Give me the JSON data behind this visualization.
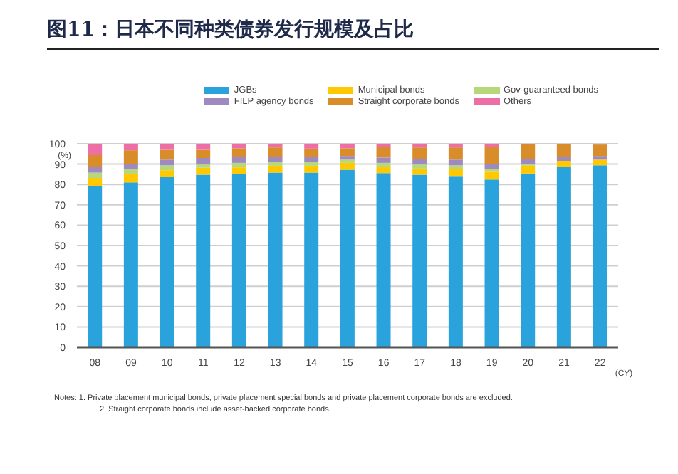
{
  "chart_data": {
    "type": "bar",
    "title": "图11：日本不同种类债券发行规模及占比",
    "ylabel": "(%)",
    "xlabel": "(CY)",
    "categories": [
      "08",
      "09",
      "10",
      "11",
      "12",
      "13",
      "14",
      "15",
      "16",
      "17",
      "18",
      "19",
      "20",
      "21",
      "22"
    ],
    "stacked": true,
    "ylim": [
      0,
      100
    ],
    "yticks": [
      0,
      10,
      20,
      30,
      40,
      50,
      60,
      70,
      80,
      90,
      100
    ],
    "grid": "y",
    "legend": "top right",
    "series": [
      {
        "name": "JGBs",
        "color": "#2aa3dc",
        "values": [
          79.2,
          81,
          83.6,
          84.8,
          85.2,
          85.8,
          85.8,
          87.2,
          85.6,
          84.8,
          84.2,
          82.4,
          85.4,
          88.8,
          89.4
        ]
      },
      {
        "name": "Municipal bonds",
        "color": "#ffc800",
        "values": [
          4,
          4,
          3.4,
          3.4,
          3.2,
          3.4,
          3.4,
          3.4,
          3,
          3,
          3.4,
          4.2,
          3.8,
          2.8,
          2.8
        ]
      },
      {
        "name": "Gov-guaranteed bonds",
        "color": "#b6d77a",
        "values": [
          2.6,
          2.6,
          2.4,
          1.6,
          2.2,
          2,
          2,
          1.6,
          2,
          2,
          1.8,
          0.8,
          0.8,
          0,
          0
        ]
      },
      {
        "name": "FILP agency bonds",
        "color": "#9e8ac0",
        "values": [
          2.8,
          2.6,
          2.8,
          3.2,
          2.8,
          2.4,
          2.2,
          1.8,
          2.6,
          2.6,
          2.8,
          2.6,
          2.4,
          1.8,
          1.8
        ]
      },
      {
        "name": "Straight corporate bonds",
        "color": "#d88d2a",
        "values": [
          5.8,
          6.6,
          4.8,
          4,
          4.4,
          4.6,
          4.2,
          3.8,
          5.4,
          5.8,
          6,
          8.6,
          7.6,
          6.6,
          5.6
        ]
      },
      {
        "name": "Others",
        "color": "#ee6fa6",
        "values": [
          5.6,
          3.2,
          3,
          3,
          2.2,
          1.8,
          2.4,
          2.2,
          1.4,
          1.8,
          1.8,
          1.4,
          0,
          0,
          0.4
        ]
      }
    ],
    "annotations": [
      "Notes: 1. Private placement municipal bonds, private placement special bonds and private placement corporate bonds are excluded.",
      "2. Straight corporate bonds include asset-backed corporate bonds."
    ]
  }
}
